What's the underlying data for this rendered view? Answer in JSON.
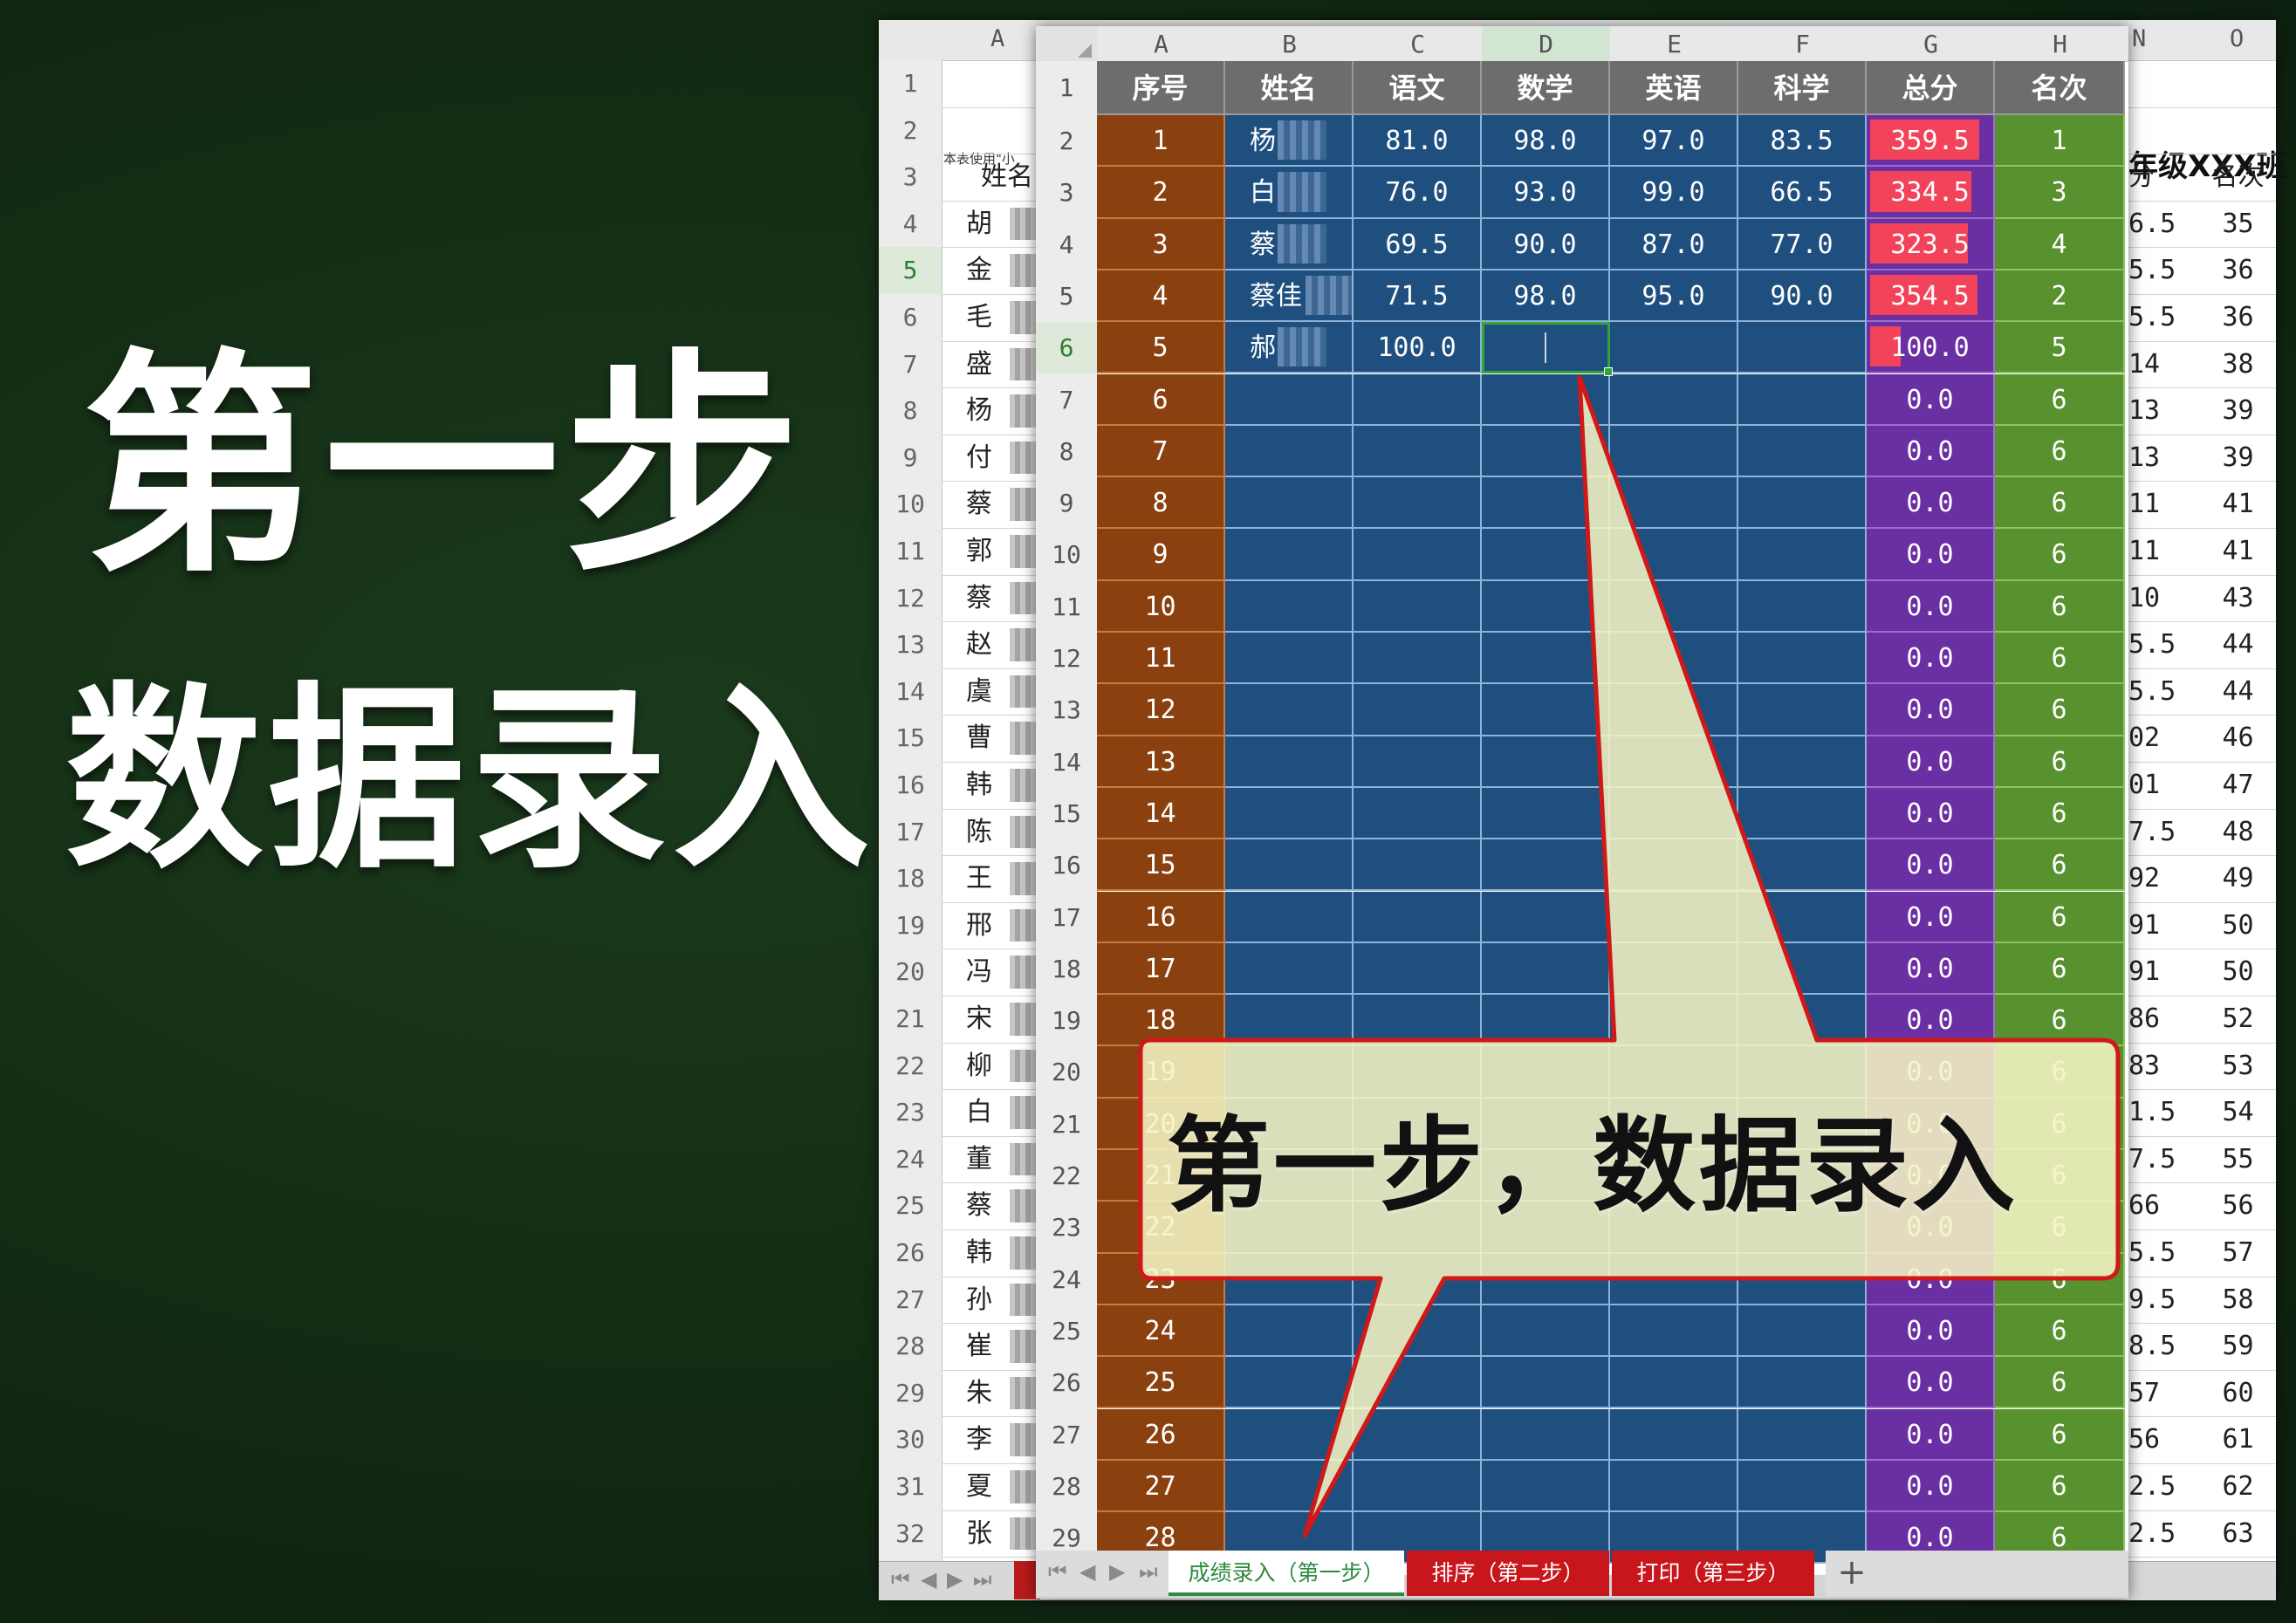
{
  "headline": {
    "line1": "第一步",
    "line2": "数据录入"
  },
  "callout": {
    "text": "第一步，数据录入"
  },
  "back_sheet": {
    "col_letters": [
      "A",
      "N",
      "O"
    ],
    "row_numbers": [
      "1",
      "2",
      "3",
      "4",
      "5",
      "6",
      "7",
      "8",
      "9",
      "10",
      "11",
      "12",
      "13",
      "14",
      "15",
      "16",
      "17",
      "18",
      "19",
      "20",
      "21",
      "22",
      "23",
      "24",
      "25",
      "26",
      "27",
      "28",
      "29",
      "30",
      "31",
      "32"
    ],
    "note": "本表使用\"小",
    "title": "年级XXX班",
    "header_a": "姓名",
    "header_n": "分",
    "header_o": "名次",
    "names": [
      "胡",
      "金",
      "毛",
      "盛",
      "杨",
      "付",
      "蔡",
      "郭",
      "蔡",
      "赵",
      "虞",
      "曹",
      "韩",
      "陈",
      "王",
      "邢",
      "冯",
      "宋",
      "柳",
      "白",
      "董",
      "蔡",
      "韩",
      "孙",
      "崔",
      "朱",
      "李",
      "夏",
      "张"
    ],
    "n_values": [
      "6.5",
      "5.5",
      "5.5",
      "14",
      "13",
      "13",
      "11",
      "11",
      "10",
      "5.5",
      "5.5",
      "02",
      "01",
      "7.5",
      "92",
      "91",
      "91",
      "86",
      "83",
      "1.5",
      "7.5",
      "66",
      "5.5",
      "9.5",
      "8.5",
      "57",
      "56",
      "2.5",
      "2.5"
    ],
    "o_values": [
      "35",
      "36",
      "36",
      "38",
      "39",
      "39",
      "41",
      "41",
      "43",
      "44",
      "44",
      "46",
      "47",
      "48",
      "49",
      "50",
      "50",
      "52",
      "53",
      "54",
      "55",
      "56",
      "57",
      "58",
      "59",
      "60",
      "61",
      "62",
      "63"
    ],
    "nav_arrows": [
      "⏮",
      "◀",
      "▶",
      "⏭"
    ]
  },
  "front_sheet": {
    "col_letters": [
      "A",
      "B",
      "C",
      "D",
      "E",
      "F",
      "G",
      "H"
    ],
    "headers": [
      "序号",
      "姓名",
      "语文",
      "数学",
      "英语",
      "科学",
      "总分",
      "名次"
    ],
    "row_numbers": [
      "1",
      "2",
      "3",
      "4",
      "5",
      "6",
      "7",
      "8",
      "9",
      "10",
      "11",
      "12",
      "13",
      "14",
      "15",
      "16",
      "17",
      "18",
      "19",
      "20",
      "21",
      "22",
      "23",
      "24",
      "25",
      "26",
      "27",
      "28",
      "29"
    ],
    "rows": [
      {
        "seq": "1",
        "name": "杨",
        "chinese": "81.0",
        "math": "98.0",
        "english": "97.0",
        "science": "83.5",
        "total": "359.5",
        "rank": "1"
      },
      {
        "seq": "2",
        "name": "白",
        "chinese": "76.0",
        "math": "93.0",
        "english": "99.0",
        "science": "66.5",
        "total": "334.5",
        "rank": "3"
      },
      {
        "seq": "3",
        "name": "蔡",
        "chinese": "69.5",
        "math": "90.0",
        "english": "87.0",
        "science": "77.0",
        "total": "323.5",
        "rank": "4"
      },
      {
        "seq": "4",
        "name": "蔡佳",
        "chinese": "71.5",
        "math": "98.0",
        "english": "95.0",
        "science": "90.0",
        "total": "354.5",
        "rank": "2"
      },
      {
        "seq": "5",
        "name": "郝",
        "chinese": "100.0",
        "math": "",
        "english": "",
        "science": "",
        "total": "100.0",
        "rank": "5"
      },
      {
        "seq": "6",
        "name": "",
        "chinese": "",
        "math": "",
        "english": "",
        "science": "",
        "total": "0.0",
        "rank": "6"
      },
      {
        "seq": "7",
        "name": "",
        "chinese": "",
        "math": "",
        "english": "",
        "science": "",
        "total": "0.0",
        "rank": "6"
      },
      {
        "seq": "8",
        "name": "",
        "chinese": "",
        "math": "",
        "english": "",
        "science": "",
        "total": "0.0",
        "rank": "6"
      },
      {
        "seq": "9",
        "name": "",
        "chinese": "",
        "math": "",
        "english": "",
        "science": "",
        "total": "0.0",
        "rank": "6"
      },
      {
        "seq": "10",
        "name": "",
        "chinese": "",
        "math": "",
        "english": "",
        "science": "",
        "total": "0.0",
        "rank": "6"
      },
      {
        "seq": "11",
        "name": "",
        "chinese": "",
        "math": "",
        "english": "",
        "science": "",
        "total": "0.0",
        "rank": "6"
      },
      {
        "seq": "12",
        "name": "",
        "chinese": "",
        "math": "",
        "english": "",
        "science": "",
        "total": "0.0",
        "rank": "6"
      },
      {
        "seq": "13",
        "name": "",
        "chinese": "",
        "math": "",
        "english": "",
        "science": "",
        "total": "0.0",
        "rank": "6"
      },
      {
        "seq": "14",
        "name": "",
        "chinese": "",
        "math": "",
        "english": "",
        "science": "",
        "total": "0.0",
        "rank": "6"
      },
      {
        "seq": "15",
        "name": "",
        "chinese": "",
        "math": "",
        "english": "",
        "science": "",
        "total": "0.0",
        "rank": "6"
      },
      {
        "seq": "16",
        "name": "",
        "chinese": "",
        "math": "",
        "english": "",
        "science": "",
        "total": "0.0",
        "rank": "6"
      },
      {
        "seq": "17",
        "name": "",
        "chinese": "",
        "math": "",
        "english": "",
        "science": "",
        "total": "0.0",
        "rank": "6"
      },
      {
        "seq": "18",
        "name": "",
        "chinese": "",
        "math": "",
        "english": "",
        "science": "",
        "total": "0.0",
        "rank": "6"
      },
      {
        "seq": "19",
        "name": "",
        "chinese": "",
        "math": "",
        "english": "",
        "science": "",
        "total": "0.0",
        "rank": "6"
      },
      {
        "seq": "20",
        "name": "",
        "chinese": "",
        "math": "",
        "english": "",
        "science": "",
        "total": "0.0",
        "rank": "6"
      },
      {
        "seq": "21",
        "name": "",
        "chinese": "",
        "math": "",
        "english": "",
        "science": "",
        "total": "0.0",
        "rank": "6"
      },
      {
        "seq": "22",
        "name": "",
        "chinese": "",
        "math": "",
        "english": "",
        "science": "",
        "total": "0.0",
        "rank": "6"
      },
      {
        "seq": "23",
        "name": "",
        "chinese": "",
        "math": "",
        "english": "",
        "science": "",
        "total": "0.0",
        "rank": "6"
      },
      {
        "seq": "24",
        "name": "",
        "chinese": "",
        "math": "",
        "english": "",
        "science": "",
        "total": "0.0",
        "rank": "6"
      },
      {
        "seq": "25",
        "name": "",
        "chinese": "",
        "math": "",
        "english": "",
        "science": "",
        "total": "0.0",
        "rank": "6"
      },
      {
        "seq": "26",
        "name": "",
        "chinese": "",
        "math": "",
        "english": "",
        "science": "",
        "total": "0.0",
        "rank": "6"
      },
      {
        "seq": "27",
        "name": "",
        "chinese": "",
        "math": "",
        "english": "",
        "science": "",
        "total": "0.0",
        "rank": "6"
      },
      {
        "seq": "28",
        "name": "",
        "chinese": "",
        "math": "",
        "english": "",
        "science": "",
        "total": "0.0",
        "rank": "6"
      }
    ],
    "total_max": 400,
    "sheet_tabs": [
      {
        "label": "成绩录入（第一步）",
        "active": true
      },
      {
        "label": "排序（第二步）",
        "active": false
      },
      {
        "label": "打印（第三步）",
        "active": false
      }
    ],
    "add_sheet": "+",
    "nav_arrows": [
      "⏮",
      "◀",
      "▶",
      "⏭"
    ]
  },
  "colors": {
    "background": "#122a13",
    "seq_col": "#8b4010",
    "grid_blue": "#1f4f7f",
    "total_col": "#6a2fa3",
    "databar": "#f2435a",
    "rank_col": "#58922f",
    "callout_fill": "#f4f4c4",
    "callout_border": "#d01818",
    "tab_red": "#c8161d"
  }
}
